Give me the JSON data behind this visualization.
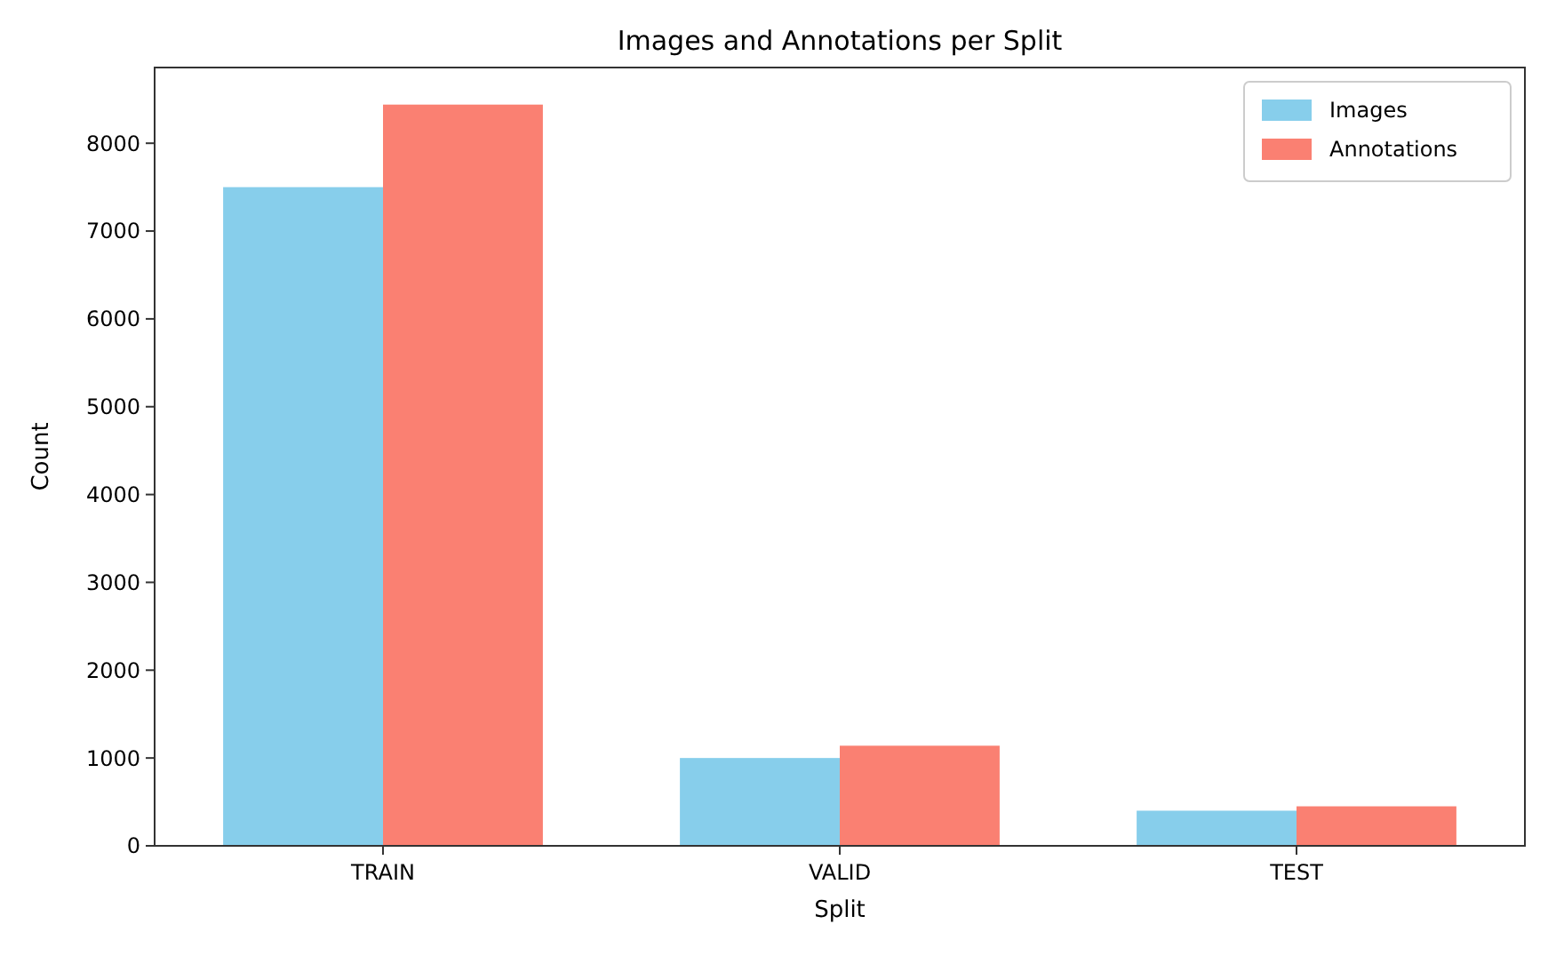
{
  "chart_data": {
    "type": "bar",
    "title": "Images and Annotations per Split",
    "xlabel": "Split",
    "ylabel": "Count",
    "categories": [
      "TRAIN",
      "VALID",
      "TEST"
    ],
    "series": [
      {
        "name": "Images",
        "color": "#87ceeb",
        "values": [
          7500,
          1000,
          400
        ]
      },
      {
        "name": "Annotations",
        "color": "#fa8072",
        "values": [
          8440,
          1140,
          450
        ]
      }
    ],
    "ylim": [
      0,
      8862
    ],
    "yticks": [
      0,
      1000,
      2000,
      3000,
      4000,
      5000,
      6000,
      7000,
      8000
    ],
    "grid": false,
    "legend": "top right"
  }
}
